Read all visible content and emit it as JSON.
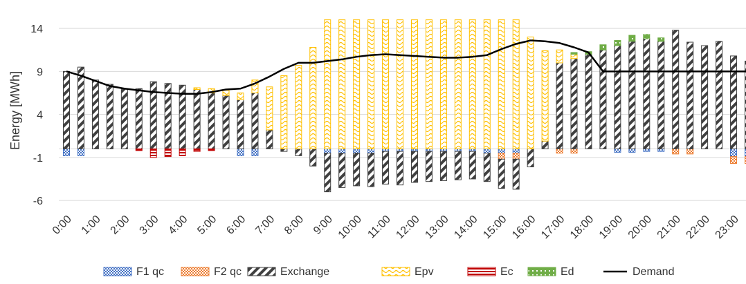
{
  "chart_data": {
    "type": "bar",
    "title": "",
    "xlabel": "",
    "ylabel": "Energy [MWh]",
    "ylim": [
      -7.2,
      16.5
    ],
    "yticks": [
      -6,
      -1,
      4,
      9,
      14
    ],
    "grid": "horizontal",
    "legend_position": "bottom",
    "xtick_labels": [
      "0:00",
      "1:00",
      "2:00",
      "3:00",
      "4:00",
      "5:00",
      "6:00",
      "7:00",
      "8:00",
      "9:00",
      "10:00",
      "11:00",
      "12:00",
      "13:00",
      "14:00",
      "15:00",
      "16:00",
      "17:00",
      "18:00",
      "19:00",
      "20:00",
      "21:00",
      "22:00",
      "23:00"
    ],
    "x_interval": "30 min (48 intervals)",
    "series": [
      {
        "name": "F1 qc",
        "color": "#4472C4",
        "pattern": "dots",
        "values": [
          -0.8,
          -0.8,
          0,
          0,
          0,
          0,
          0,
          0,
          0,
          0,
          0,
          0,
          -0.8,
          -0.8,
          0,
          0,
          0,
          0,
          -0.5,
          -0.5,
          -0.5,
          -0.5,
          -0.3,
          -0.3,
          -0.3,
          -0.3,
          -0.3,
          -0.3,
          -0.3,
          -0.5,
          -0.5,
          -0.5,
          0,
          0,
          0,
          0,
          0,
          0,
          -0.4,
          -0.4,
          -0.3,
          -0.3,
          0,
          0,
          0,
          0,
          -0.9,
          -0.9
        ]
      },
      {
        "name": "F2 qc",
        "color": "#ED7D31",
        "pattern": "crosshatch",
        "values": [
          0,
          0,
          0,
          0,
          0,
          0,
          0,
          0,
          0,
          0,
          0,
          0,
          0,
          0,
          0,
          0,
          0,
          0,
          0,
          0,
          0,
          0,
          0,
          0,
          0,
          0,
          0,
          0,
          0,
          0,
          -0.7,
          -0.7,
          0,
          0,
          -0.5,
          -0.5,
          0,
          0,
          0,
          0,
          0,
          0,
          -0.6,
          -0.6,
          0,
          0,
          -0.8,
          -0.8
        ]
      },
      {
        "name": "Exchange",
        "color": "#404040",
        "pattern": "diagonal",
        "values": [
          9.0,
          9.5,
          8.0,
          7.5,
          7.0,
          7.0,
          7.8,
          7.6,
          7.4,
          6.9,
          6.5,
          6.2,
          5.7,
          6.5,
          2.2,
          -0.3,
          -0.8,
          -2.0,
          -4.5,
          -4.0,
          -3.8,
          -3.9,
          -3.8,
          -3.9,
          -3.6,
          -3.5,
          -3.4,
          -3.3,
          -3.2,
          -3.3,
          -3.4,
          -3.5,
          -2.1,
          0.9,
          10.0,
          10.5,
          11.0,
          11.5,
          12.0,
          12.5,
          12.8,
          12.5,
          13.8,
          12.4,
          12.0,
          12.5,
          10.8,
          10.2
        ]
      },
      {
        "name": "Epv",
        "color": "#FFC000",
        "pattern": "wave",
        "values": [
          0,
          0,
          0,
          0,
          0,
          0,
          0,
          0,
          0,
          0.2,
          0.5,
          0.6,
          0.8,
          1.5,
          5.0,
          8.5,
          9.7,
          11.8,
          15.0,
          15.0,
          15.0,
          15.0,
          15.0,
          15.0,
          15.0,
          15.0,
          15.0,
          15.0,
          15.0,
          15.0,
          15.0,
          15.0,
          13.0,
          10.5,
          1.5,
          0.5,
          0,
          0,
          0,
          0,
          0,
          0,
          0,
          0,
          0,
          0,
          0,
          0
        ]
      },
      {
        "name": "Ec",
        "color": "#C00000",
        "pattern": "horizontal",
        "values": [
          0,
          0,
          0,
          0,
          0,
          -0.2,
          -1.0,
          -0.9,
          -0.8,
          -0.3,
          -0.2,
          0,
          0,
          0,
          0,
          0,
          0,
          0,
          0,
          0,
          0,
          0,
          0,
          0,
          0,
          0,
          0,
          0,
          0,
          0,
          0,
          0,
          0,
          0,
          0,
          0,
          0,
          0,
          0,
          0,
          0,
          0,
          0,
          0,
          0,
          0,
          0,
          0
        ]
      },
      {
        "name": "Ed",
        "color": "#70AD47",
        "pattern": "squares",
        "values": [
          0,
          0,
          0,
          0,
          0,
          0,
          0,
          0,
          0,
          0,
          0,
          0,
          0,
          0,
          0,
          0,
          0,
          0,
          0,
          0,
          0,
          0,
          0,
          0,
          0,
          0,
          0,
          0,
          0,
          0,
          0,
          0,
          0,
          0,
          0,
          0.2,
          0.3,
          0.6,
          0.6,
          0.7,
          0.5,
          0.4,
          0,
          0,
          0,
          0,
          0,
          0
        ]
      },
      {
        "name": "Demand",
        "color": "#000000",
        "type": "line",
        "values": [
          9.0,
          8.5,
          7.9,
          7.3,
          7.0,
          6.8,
          6.6,
          6.5,
          6.4,
          6.4,
          6.6,
          6.9,
          7.0,
          7.6,
          8.4,
          9.3,
          10.0,
          10.0,
          10.2,
          10.4,
          10.7,
          10.9,
          11.0,
          10.9,
          10.8,
          10.7,
          10.6,
          10.6,
          10.7,
          10.9,
          11.6,
          12.2,
          12.6,
          12.5,
          12.3,
          11.8,
          11.2,
          9.0,
          9.0,
          9.0,
          9.0,
          9.0,
          9.0,
          9.0,
          9.0,
          9.0,
          9.0,
          9.0
        ]
      }
    ]
  }
}
